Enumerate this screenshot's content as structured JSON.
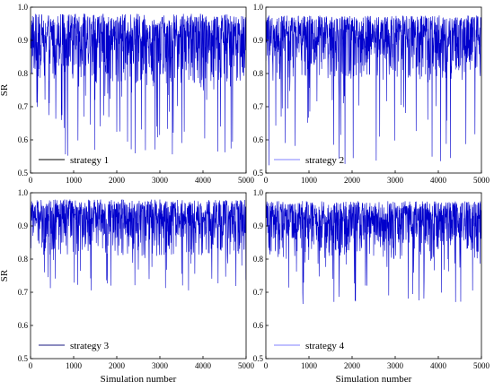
{
  "chart_data": [
    {
      "type": "line",
      "panel": "top-left",
      "series": [
        {
          "name": "strategy 1",
          "color": "#0000cc",
          "count": 5000,
          "typical_range": [
            0.82,
            0.97
          ],
          "upper_envelope": 0.98,
          "spike_min": 0.55
        }
      ],
      "xlim": [
        0,
        5000
      ],
      "ylim": [
        0.5,
        1.0
      ],
      "xticks": [
        "0",
        "1000",
        "2000",
        "3000",
        "4000",
        "5000"
      ],
      "yticks": [
        "0.5",
        "0.6",
        "0.7",
        "0.8",
        "0.9",
        "1.0"
      ],
      "xlabel": "",
      "ylabel": "SR",
      "legend": "bottom-left",
      "legend_line_color": "#000000"
    },
    {
      "type": "line",
      "panel": "top-right",
      "series": [
        {
          "name": "strategy 2",
          "color": "#0000cc",
          "count": 5000,
          "typical_range": [
            0.83,
            0.96
          ],
          "upper_envelope": 0.975,
          "spike_min": 0.52
        }
      ],
      "xlim": [
        0,
        5000
      ],
      "ylim": [
        0.5,
        1.0
      ],
      "xticks": [
        "0",
        "1000",
        "2000",
        "3000",
        "4000",
        "5000"
      ],
      "yticks": [
        "0.5",
        "0.6",
        "0.7",
        "0.8",
        "0.9",
        "1.0"
      ],
      "xlabel": "",
      "ylabel": "",
      "legend": "bottom-left",
      "legend_line_color": "#8080ff"
    },
    {
      "type": "line",
      "panel": "bottom-left",
      "series": [
        {
          "name": "strategy 3",
          "color": "#0000cc",
          "count": 5000,
          "typical_range": [
            0.86,
            0.97
          ],
          "upper_envelope": 0.98,
          "spike_min": 0.7
        }
      ],
      "xlim": [
        0,
        5000
      ],
      "ylim": [
        0.5,
        1.0
      ],
      "xticks": [
        "0",
        "1000",
        "2000",
        "3000",
        "4000",
        "5000"
      ],
      "yticks": [
        "0.5",
        "0.6",
        "0.7",
        "0.8",
        "0.9",
        "1.0"
      ],
      "xlabel": "Simulation number",
      "ylabel": "SR",
      "legend": "bottom-left",
      "legend_line_color": "#1a1a80"
    },
    {
      "type": "line",
      "panel": "bottom-right",
      "series": [
        {
          "name": "strategy 4",
          "color": "#0000cc",
          "count": 5000,
          "typical_range": [
            0.85,
            0.96
          ],
          "upper_envelope": 0.975,
          "spike_min": 0.66
        }
      ],
      "xlim": [
        0,
        5000
      ],
      "ylim": [
        0.5,
        1.0
      ],
      "xticks": [
        "0",
        "1000",
        "2000",
        "3000",
        "4000",
        "5000"
      ],
      "yticks": [
        "0.5",
        "0.6",
        "0.7",
        "0.8",
        "0.9",
        "1.0"
      ],
      "xlabel": "Simulation number",
      "ylabel": "",
      "legend": "bottom-left",
      "legend_line_color": "#8080ff"
    }
  ]
}
